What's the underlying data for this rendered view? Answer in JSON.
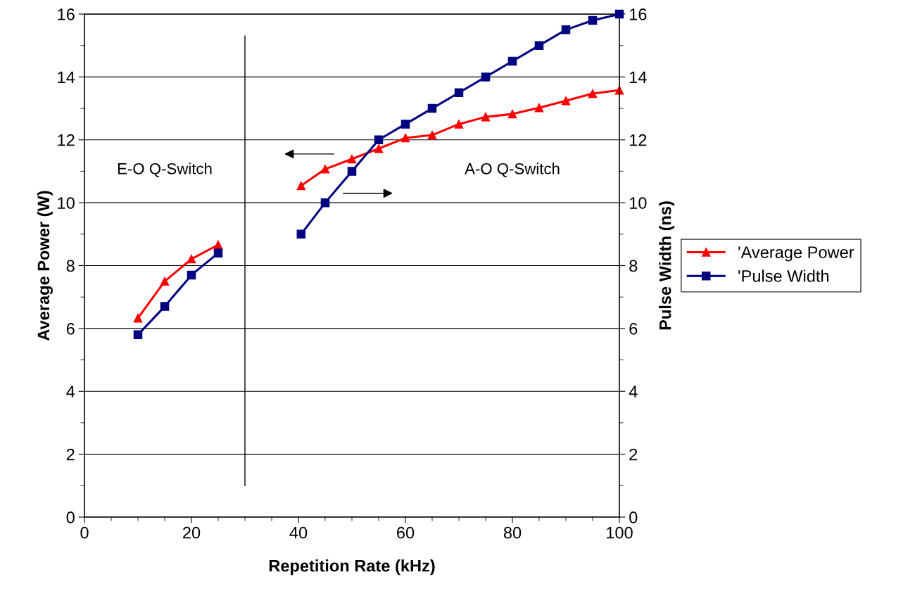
{
  "chart_data": {
    "type": "line",
    "xlabel": "Repetition Rate (kHz)",
    "ylabel": "Average Power (W)",
    "y2label": "Pulse Width (ns)",
    "x": [
      10,
      15,
      20,
      25,
      30,
      40.5,
      45,
      50,
      55,
      60,
      65,
      70,
      75,
      80,
      85,
      90,
      95,
      100
    ],
    "series": [
      {
        "name": "'Average Power",
        "color": "#ff0000",
        "marker": "triangle",
        "values": [
          6.33,
          7.5,
          8.21,
          8.66,
          null,
          10.54,
          11.07,
          11.39,
          11.72,
          12.06,
          12.15,
          12.5,
          12.73,
          12.82,
          13.02,
          13.24,
          13.47,
          13.58
        ]
      },
      {
        "name": "'Pulse Width",
        "color": "#000080",
        "marker": "square",
        "axis": "y2",
        "values": [
          5.8,
          6.7,
          7.7,
          8.4,
          null,
          9.0,
          10,
          11,
          12,
          12.5,
          13,
          13.5,
          14,
          14.5,
          15,
          15.5,
          15.8,
          16
        ]
      }
    ],
    "xlim": [
      0,
      100
    ],
    "xticks": [
      0,
      20,
      40,
      60,
      80,
      100
    ],
    "ylim": [
      0,
      16
    ],
    "yticks": [
      0,
      2,
      4,
      6,
      8,
      10,
      12,
      14,
      16
    ],
    "y2lim": [
      0,
      16
    ],
    "y2ticks": [
      0,
      2,
      4,
      6,
      8,
      10,
      12,
      14,
      16
    ],
    "ref_lines": [
      {
        "axis": "x",
        "value": 30,
        "color": "#000000",
        "line_style": "solid"
      }
    ],
    "annotations": [
      "E-O Q-Switch",
      "A-O Q-Switch"
    ],
    "grid": "y",
    "legend": "right",
    "line_style": "solid"
  }
}
